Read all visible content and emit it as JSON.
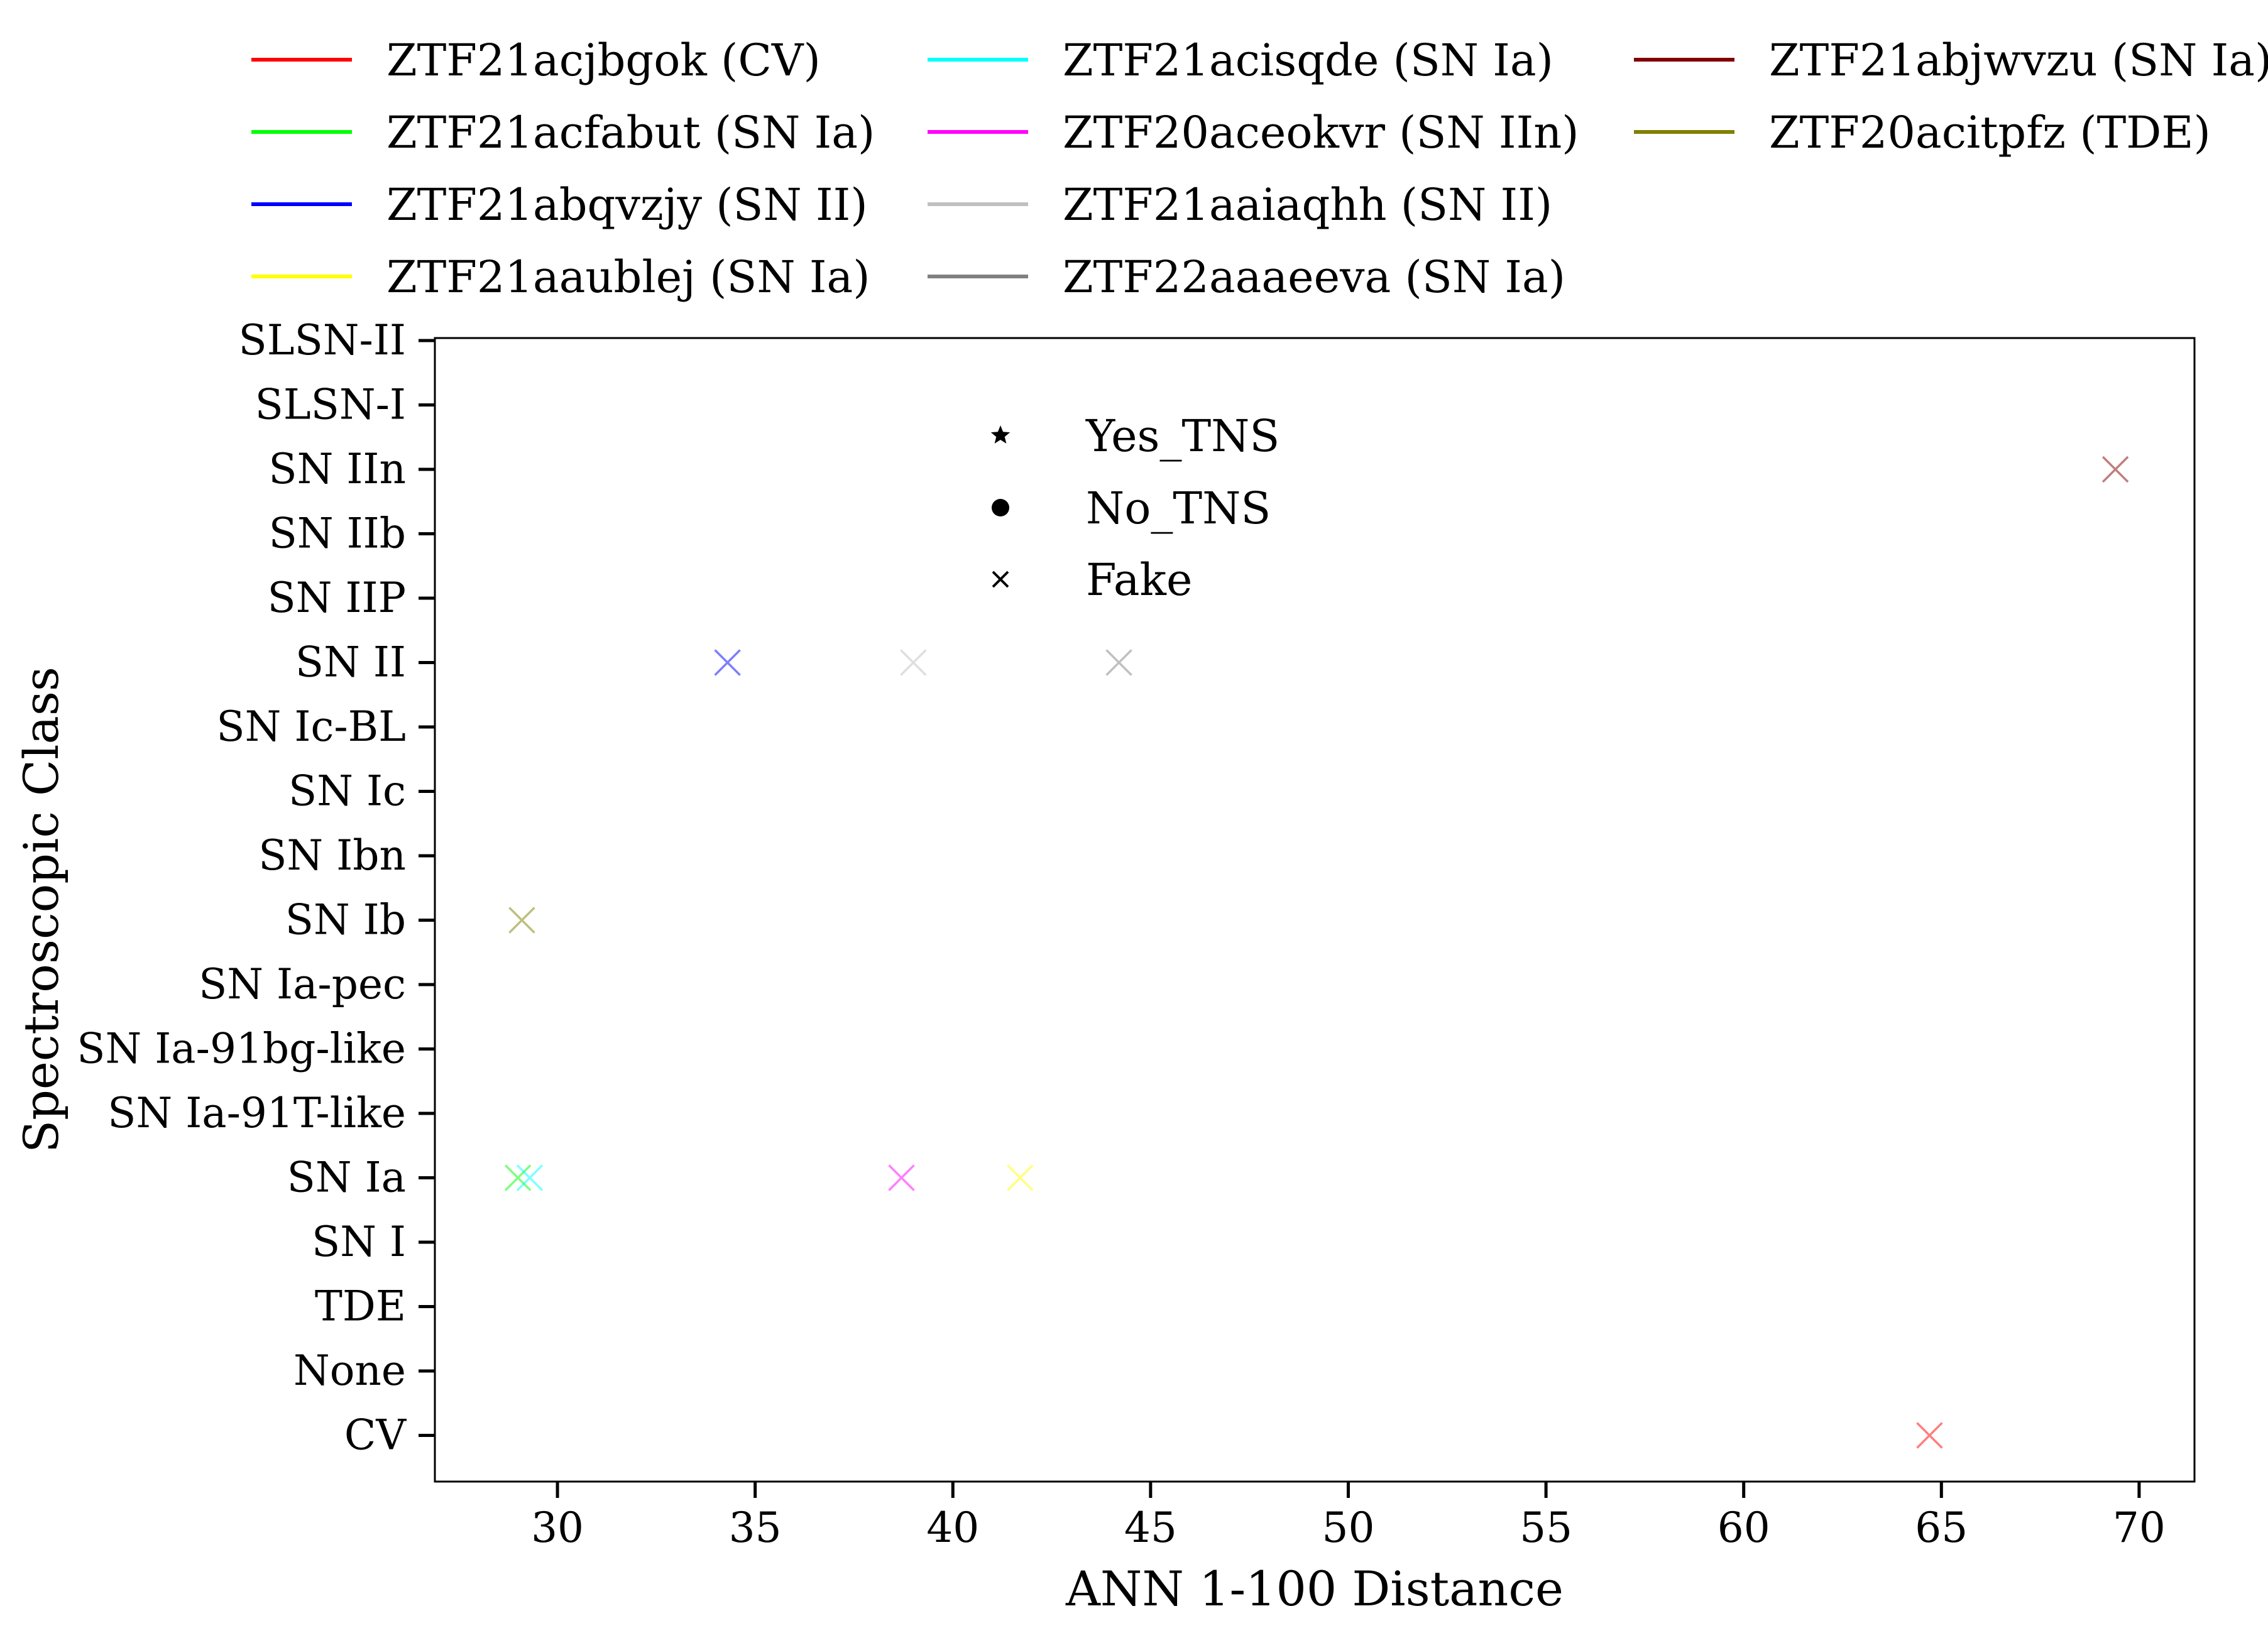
{
  "chart_data": {
    "type": "scatter",
    "title": "",
    "xlabel": "ANN 1-100 Distance",
    "ylabel": "Spectroscopic Class",
    "xlim": [
      26.9,
      71.4
    ],
    "xticks": [
      30,
      35,
      40,
      45,
      50,
      55,
      60,
      65,
      70
    ],
    "y_categories": [
      "SLSN-II",
      "SLSN-I",
      "SN IIn",
      "SN IIb",
      "SN IIP",
      "SN II",
      "SN Ic-BL",
      "SN Ic",
      "SN Ibn",
      "SN Ib",
      "SN Ia-pec",
      "SN Ia-91bg-like",
      "SN Ia-91T-like",
      "SN Ia",
      "SN I",
      "TDE",
      "None",
      "CV"
    ],
    "grid": false,
    "series": [
      {
        "name": "ZTF21acjbgok (CV)",
        "color": "#ff0000",
        "points": [
          {
            "x": 64.7,
            "y": "CV"
          }
        ]
      },
      {
        "name": "ZTF21acfabut (SN Ia)",
        "color": "#00ff00",
        "points": [
          {
            "x": 29.0,
            "y": "SN Ia"
          }
        ]
      },
      {
        "name": "ZTF21abqvzjy (SN II)",
        "color": "#0000ff",
        "points": [
          {
            "x": 34.3,
            "y": "SN II"
          }
        ]
      },
      {
        "name": "ZTF21aaublej (SN Ia)",
        "color": "#ffff00",
        "points": [
          {
            "x": 41.7,
            "y": "SN Ia"
          }
        ]
      },
      {
        "name": "ZTF21acisqde (SN Ia)",
        "color": "#00ffff",
        "points": [
          {
            "x": 29.3,
            "y": "SN Ia"
          }
        ]
      },
      {
        "name": "ZTF20aceokvr (SN IIn)",
        "color": "#ff00ff",
        "points": [
          {
            "x": 38.7,
            "y": "SN Ia"
          }
        ]
      },
      {
        "name": "ZTF21aaiaqhh (SN II)",
        "color": "#c0c0c0",
        "points": [
          {
            "x": 39.0,
            "y": "SN II"
          }
        ]
      },
      {
        "name": "ZTF22aaaeeva (SN Ia)",
        "color": "#808080",
        "points": [
          {
            "x": 44.2,
            "y": "SN II"
          }
        ]
      },
      {
        "name": "ZTF21abjwvzu (SN Ia)",
        "color": "#800000",
        "points": [
          {
            "x": 69.4,
            "y": "SN IIn"
          }
        ]
      },
      {
        "name": "ZTF20acitpfz (TDE)",
        "color": "#808000",
        "points": [
          {
            "x": 29.1,
            "y": "SN Ib"
          }
        ]
      }
    ],
    "marker_legend": [
      {
        "label": "Yes_TNS",
        "marker": "star"
      },
      {
        "label": "No_TNS",
        "marker": "circle"
      },
      {
        "label": "Fake",
        "marker": "x"
      }
    ],
    "series_legend_placement": "top",
    "marker_legend_placement": "upper-center"
  }
}
